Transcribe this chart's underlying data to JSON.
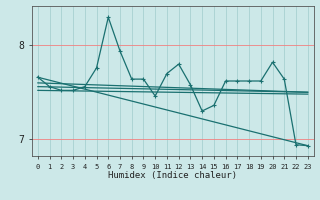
{
  "xlabel": "Humidex (Indice chaleur)",
  "bg_color": "#cce8e8",
  "grid_color_red": "#f08080",
  "grid_color_teal": "#a0cccc",
  "line_color": "#1a7070",
  "xlim": [
    -0.5,
    23.5
  ],
  "ylim": [
    6.82,
    8.42
  ],
  "yticks": [
    7,
    8
  ],
  "xticks": [
    0,
    1,
    2,
    3,
    4,
    5,
    6,
    7,
    8,
    9,
    10,
    11,
    12,
    13,
    14,
    15,
    16,
    17,
    18,
    19,
    20,
    21,
    22,
    23
  ],
  "main_x": [
    0,
    1,
    2,
    3,
    4,
    5,
    6,
    7,
    8,
    9,
    10,
    11,
    12,
    13,
    14,
    15,
    16,
    17,
    18,
    19,
    20,
    21,
    22,
    23
  ],
  "main_y": [
    7.66,
    7.56,
    7.52,
    7.52,
    7.56,
    7.76,
    8.3,
    7.94,
    7.64,
    7.64,
    7.46,
    7.7,
    7.8,
    7.58,
    7.3,
    7.36,
    7.62,
    7.62,
    7.62,
    7.62,
    7.82,
    7.64,
    6.94,
    6.93
  ],
  "trend_lines": [
    {
      "x": [
        0,
        23
      ],
      "y": [
        7.66,
        6.93
      ]
    },
    {
      "x": [
        0,
        23
      ],
      "y": [
        7.6,
        7.5
      ]
    },
    {
      "x": [
        0,
        23
      ],
      "y": [
        7.56,
        7.5
      ]
    },
    {
      "x": [
        0,
        23
      ],
      "y": [
        7.52,
        7.48
      ]
    }
  ]
}
